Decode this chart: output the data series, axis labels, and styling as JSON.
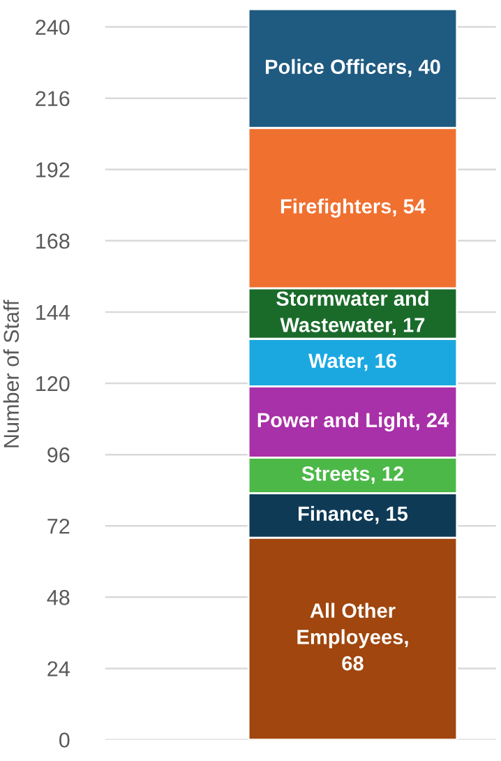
{
  "chart_data": {
    "type": "bar",
    "stacked": true,
    "ylabel": "Number of Staff",
    "categories": [
      null
    ],
    "series": [
      {
        "color": "#a0460e",
        "values": [
          68
        ],
        "value_labels": [
          "All Other\nEmployees,\n68"
        ]
      },
      {
        "color": "#0e3a55",
        "values": [
          15
        ],
        "value_labels": [
          "Finance, 15"
        ]
      },
      {
        "color": "#4cb848",
        "values": [
          12
        ],
        "value_labels": [
          "Streets, 12"
        ]
      },
      {
        "color": "#a830a8",
        "values": [
          24
        ],
        "value_labels": [
          "Power and Light, 24"
        ]
      },
      {
        "color": "#1ba8e0",
        "values": [
          16
        ],
        "value_labels": [
          "Water, 16"
        ]
      },
      {
        "color": "#1a6b2a",
        "values": [
          17
        ],
        "value_labels": [
          "Stormwater and\nWastewater, 17"
        ]
      },
      {
        "color": "#f07030",
        "values": [
          54
        ],
        "value_labels": [
          "Firefighters, 54"
        ]
      },
      {
        "color": "#1f5a80",
        "values": [
          40
        ],
        "value_labels": [
          "Police Officers, 40"
        ]
      }
    ],
    "ylim": [
      0,
      246
    ],
    "yticks": [
      0,
      24,
      48,
      72,
      96,
      120,
      144,
      168,
      192,
      216,
      240
    ],
    "grid": "y",
    "tick_labels": "y",
    "legend": false
  }
}
